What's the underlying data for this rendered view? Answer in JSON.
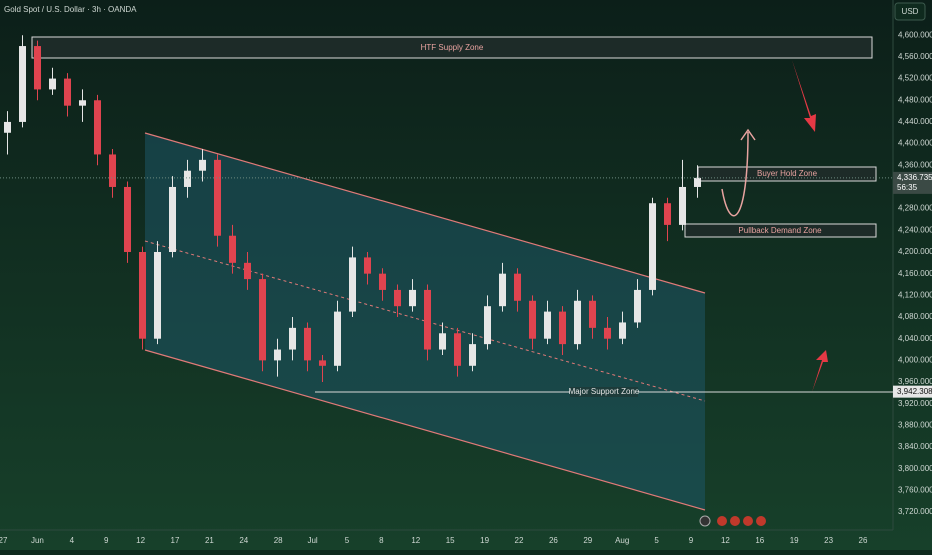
{
  "chart_data": {
    "type": "candlestick",
    "title": "Gold Spot / U.S. Dollar · 3h · OANDA",
    "currency": "USD",
    "up_color": "#e6e6e6",
    "down_color": "#e0444f",
    "ohlc": [
      [
        4420,
        4460,
        4380,
        4440
      ],
      [
        4440,
        4600,
        4430,
        4580
      ],
      [
        4580,
        4590,
        4480,
        4500
      ],
      [
        4500,
        4540,
        4490,
        4520
      ],
      [
        4520,
        4530,
        4450,
        4470
      ],
      [
        4470,
        4500,
        4440,
        4480
      ],
      [
        4480,
        4490,
        4360,
        4380
      ],
      [
        4380,
        4390,
        4300,
        4320
      ],
      [
        4320,
        4330,
        4180,
        4200
      ],
      [
        4200,
        4210,
        4020,
        4040
      ],
      [
        4040,
        4220,
        4030,
        4200
      ],
      [
        4200,
        4340,
        4190,
        4320
      ],
      [
        4320,
        4370,
        4300,
        4350
      ],
      [
        4350,
        4390,
        4330,
        4370
      ],
      [
        4370,
        4380,
        4210,
        4230
      ],
      [
        4230,
        4250,
        4160,
        4180
      ],
      [
        4180,
        4200,
        4130,
        4150
      ],
      [
        4150,
        4160,
        3980,
        4000
      ],
      [
        4000,
        4040,
        3970,
        4020
      ],
      [
        4020,
        4080,
        4000,
        4060
      ],
      [
        4060,
        4070,
        3980,
        4000
      ],
      [
        4000,
        4010,
        3960,
        3990
      ],
      [
        3990,
        4110,
        3980,
        4090
      ],
      [
        4090,
        4210,
        4080,
        4190
      ],
      [
        4190,
        4200,
        4140,
        4160
      ],
      [
        4160,
        4170,
        4110,
        4130
      ],
      [
        4130,
        4140,
        4080,
        4100
      ],
      [
        4100,
        4150,
        4090,
        4130
      ],
      [
        4130,
        4140,
        4000,
        4020
      ],
      [
        4020,
        4070,
        4010,
        4050
      ],
      [
        4050,
        4060,
        3970,
        3990
      ],
      [
        3990,
        4050,
        3980,
        4030
      ],
      [
        4030,
        4120,
        4020,
        4100
      ],
      [
        4100,
        4180,
        4090,
        4160
      ],
      [
        4160,
        4170,
        4090,
        4110
      ],
      [
        4110,
        4120,
        4020,
        4040
      ],
      [
        4040,
        4110,
        4030,
        4090
      ],
      [
        4090,
        4100,
        4010,
        4030
      ],
      [
        4030,
        4130,
        4020,
        4110
      ],
      [
        4110,
        4120,
        4040,
        4060
      ],
      [
        4060,
        4080,
        4020,
        4040
      ],
      [
        4040,
        4090,
        4030,
        4070
      ],
      [
        4070,
        4150,
        4060,
        4130
      ],
      [
        4130,
        4300,
        4120,
        4290
      ],
      [
        4290,
        4300,
        4220,
        4250
      ],
      [
        4250,
        4370,
        4240,
        4320
      ],
      [
        4320,
        4360,
        4300,
        4336.735
      ]
    ],
    "ylim": [
      3687,
      4665
    ],
    "yticks": [
      {
        "value": 3720,
        "label": "3,720.000"
      },
      {
        "value": 3760,
        "label": "3,760.000"
      },
      {
        "value": 3800,
        "label": "3,800.000"
      },
      {
        "value": 3840,
        "label": "3,840.000"
      },
      {
        "value": 3880,
        "label": "3,880.000"
      },
      {
        "value": 3920,
        "label": "3,920.000"
      },
      {
        "value": 3960,
        "label": "3,960.000"
      },
      {
        "value": 4000,
        "label": "4,000.000"
      },
      {
        "value": 4040,
        "label": "4,040.000"
      },
      {
        "value": 4080,
        "label": "4,080.000"
      },
      {
        "value": 4120,
        "label": "4,120.000"
      },
      {
        "value": 4160,
        "label": "4,160.000"
      },
      {
        "value": 4200,
        "label": "4,200.000"
      },
      {
        "value": 4240,
        "label": "4,240.000"
      },
      {
        "value": 4280,
        "label": "4,280.000"
      },
      {
        "value": 4320,
        "label": "4,320.000"
      },
      {
        "value": 4360,
        "label": "4,360.000"
      },
      {
        "value": 4400,
        "label": "4,400.000"
      },
      {
        "value": 4440,
        "label": "4,440.000"
      },
      {
        "value": 4480,
        "label": "4,480.000"
      },
      {
        "value": 4520,
        "label": "4,520.000"
      },
      {
        "value": 4560,
        "label": "4,560.000"
      },
      {
        "value": 4600,
        "label": "4,600.000"
      }
    ],
    "categories": [
      "27",
      "Jun",
      "4",
      "9",
      "12",
      "17",
      "21",
      "24",
      "28",
      "Jul",
      "5",
      "8",
      "12",
      "15",
      "19",
      "22",
      "26",
      "29",
      "Aug",
      "5",
      "9",
      "12",
      "16",
      "19",
      "23",
      "26"
    ],
    "last_price": {
      "value": 4336.735,
      "label": "4,336.735"
    },
    "countdown": "56:35",
    "support_price": {
      "value": 3942.308,
      "label": "3,942.308"
    },
    "zones": [
      "HTF Supply Zone",
      "Buyer Hold Zone",
      "Pullback Demand Zone",
      "Major Support Zone"
    ]
  }
}
